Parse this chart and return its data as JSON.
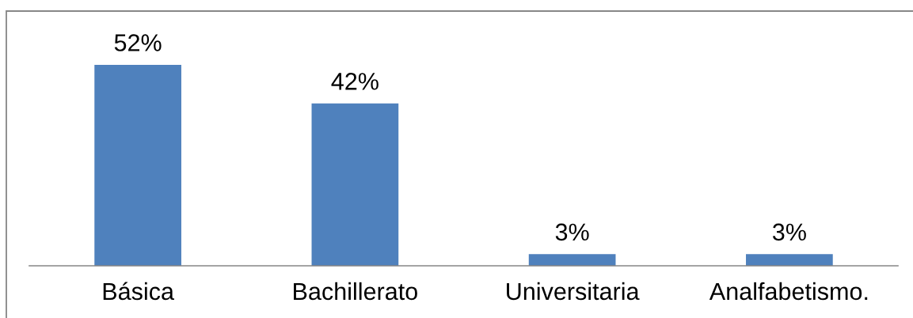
{
  "chart_data": {
    "type": "bar",
    "categories": [
      "Básica",
      "Bachillerato",
      "Universitaria",
      "Analfabetismo."
    ],
    "values": [
      52,
      42,
      3,
      3
    ],
    "color": "#4f81bd",
    "value_labels": [
      "52%",
      "42%",
      "3%",
      "3%"
    ]
  }
}
